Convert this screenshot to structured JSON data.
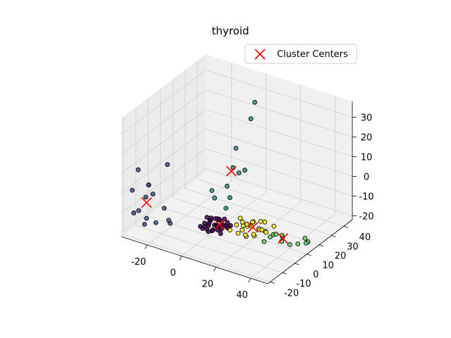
{
  "chart_data": {
    "type": "scatter",
    "projection": "3d",
    "title": "thyroid",
    "xlabel": "",
    "ylabel": "",
    "zlabel": "",
    "xlim": [
      -35,
      50
    ],
    "ylim": [
      -22,
      47
    ],
    "zlim": [
      -22,
      38
    ],
    "xticks": [
      "-20",
      "0",
      "20",
      "40"
    ],
    "xtick_values": [
      -20,
      0,
      20,
      40
    ],
    "yticks": [
      "-20",
      "-10",
      "0",
      "10",
      "20",
      "30",
      "40"
    ],
    "ytick_values": [
      -20,
      -10,
      0,
      10,
      20,
      30,
      40
    ],
    "zticks": [
      "-20",
      "-10",
      "0",
      "10",
      "20",
      "30"
    ],
    "ztick_values": [
      -20,
      -10,
      0,
      10,
      20,
      30
    ],
    "grid": true,
    "legend": {
      "placement": "top-right",
      "entries": [
        "Cluster Centers"
      ]
    },
    "cluster_colors": [
      "#440154",
      "#3b528b",
      "#21918c",
      "#5ec962",
      "#fde725"
    ],
    "center_color": "#ff0000",
    "series": [
      {
        "cluster": 0,
        "points": [
          [
            -2,
            -2,
            -18
          ],
          [
            0,
            0,
            -17
          ],
          [
            2,
            2,
            -17
          ],
          [
            4,
            1,
            -16
          ],
          [
            -1,
            3,
            -16
          ],
          [
            3,
            -1,
            -18
          ],
          [
            1,
            4,
            -15
          ],
          [
            5,
            3,
            -17
          ],
          [
            -3,
            1,
            -17
          ],
          [
            2,
            0,
            -19
          ],
          [
            6,
            2,
            -18
          ],
          [
            0,
            -3,
            -16
          ],
          [
            4,
            5,
            -16
          ],
          [
            -2,
            4,
            -17
          ],
          [
            7,
            4,
            -17
          ],
          [
            3,
            3,
            -14
          ],
          [
            1,
            -1,
            -15
          ],
          [
            5,
            0,
            -16
          ],
          [
            -1,
            0,
            -19
          ],
          [
            2,
            6,
            -16
          ],
          [
            8,
            5,
            -18
          ],
          [
            6,
            -1,
            -17
          ],
          [
            0,
            2,
            -14
          ],
          [
            3,
            5,
            -19
          ],
          [
            -4,
            -1,
            -18
          ],
          [
            9,
            3,
            -17
          ],
          [
            4,
            -2,
            -17
          ],
          [
            1,
            7,
            -17
          ],
          [
            7,
            0,
            -19
          ],
          [
            5,
            6,
            -15
          ],
          [
            10,
            4,
            -16
          ],
          [
            2,
            -3,
            -18
          ],
          [
            -3,
            3,
            -15
          ],
          [
            6,
            7,
            -17
          ],
          [
            8,
            1,
            -15
          ]
        ]
      },
      {
        "cluster": 1,
        "points": [
          [
            -28,
            -18,
            12
          ],
          [
            -30,
            -20,
            2
          ],
          [
            -25,
            -16,
            -2
          ],
          [
            -27,
            -19,
            -8
          ],
          [
            -22,
            -12,
            -16
          ],
          [
            -30,
            -10,
            -20
          ],
          [
            -24,
            -15,
            4
          ],
          [
            -20,
            -8,
            -10
          ],
          [
            -26,
            -14,
            -14
          ],
          [
            -18,
            -6,
            -18
          ],
          [
            -32,
            -16,
            -12
          ],
          [
            -22,
            -18,
            6
          ],
          [
            -21,
            -4,
            10
          ],
          [
            -16,
            -10,
            -14
          ],
          [
            -28,
            -6,
            -6
          ]
        ]
      },
      {
        "cluster": 2,
        "points": [
          [
            -3,
            42,
            25
          ],
          [
            -1,
            36,
            20
          ],
          [
            0,
            20,
            3
          ],
          [
            2,
            22,
            0
          ],
          [
            4,
            24,
            1
          ],
          [
            -2,
            18,
            -6
          ],
          [
            1,
            16,
            -10
          ],
          [
            -8,
            14,
            -8
          ],
          [
            3,
            10,
            -12
          ],
          [
            -5,
            12,
            -10
          ],
          [
            -4,
            28,
            8
          ]
        ]
      },
      {
        "cluster": 3,
        "points": [
          [
            30,
            8,
            -18
          ],
          [
            32,
            10,
            -17
          ],
          [
            28,
            6,
            -20
          ],
          [
            34,
            12,
            -18
          ],
          [
            36,
            9,
            -19
          ],
          [
            40,
            10,
            -20
          ],
          [
            46,
            14,
            -17
          ],
          [
            48,
            12,
            -18
          ],
          [
            47,
            15,
            -19
          ],
          [
            44,
            11,
            -19
          ],
          [
            33,
            14,
            -20
          ],
          [
            29,
            12,
            -19
          ]
        ]
      },
      {
        "cluster": 4,
        "points": [
          [
            12,
            6,
            -16
          ],
          [
            14,
            8,
            -15
          ],
          [
            16,
            5,
            -17
          ],
          [
            18,
            9,
            -16
          ],
          [
            20,
            7,
            -15
          ],
          [
            22,
            10,
            -17
          ],
          [
            24,
            8,
            -16
          ],
          [
            13,
            10,
            -18
          ],
          [
            15,
            3,
            -18
          ],
          [
            17,
            12,
            -16
          ],
          [
            19,
            4,
            -19
          ],
          [
            21,
            13,
            -15
          ],
          [
            23,
            5,
            -18
          ],
          [
            25,
            11,
            -18
          ],
          [
            11,
            2,
            -17
          ],
          [
            26,
            7,
            -15
          ],
          [
            16,
            14,
            -17
          ],
          [
            20,
            2,
            -17
          ],
          [
            22,
            15,
            -16
          ],
          [
            27,
            9,
            -17
          ],
          [
            18,
            6,
            -14
          ],
          [
            14,
            12,
            -19
          ],
          [
            24,
            3,
            -16
          ],
          [
            12,
            9,
            -14
          ],
          [
            28,
            14,
            -16
          ]
        ]
      }
    ],
    "centers": [
      [
        5,
        2,
        -16
      ],
      [
        -26,
        -14,
        -6
      ],
      [
        -1,
        20,
        1
      ],
      [
        36,
        10,
        -18
      ],
      [
        20,
        8,
        -16
      ]
    ]
  }
}
